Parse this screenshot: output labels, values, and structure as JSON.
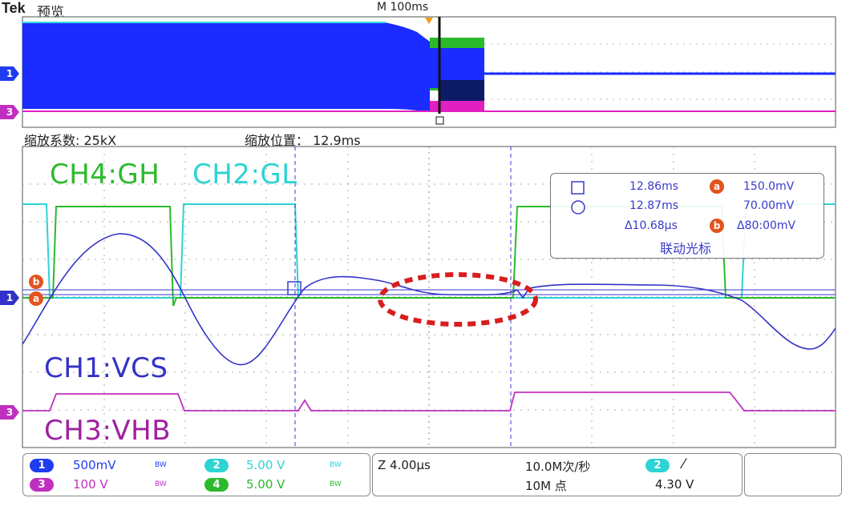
{
  "header": {
    "brand": "Tek",
    "mode": "预览",
    "overview_scale": "M 100ms"
  },
  "zoom": {
    "factor_label": "缩放系数: 25kX",
    "position_label": "缩放位置： 12.9ms"
  },
  "channel_labels": {
    "ch4": "CH4:GH",
    "ch2": "CH2:GL",
    "ch1": "CH1:VCS",
    "ch3": "CH3:VHB"
  },
  "cursor_readout": {
    "square_time": "12.86ms",
    "circle_time": "12.87ms",
    "delta_time": "Δ10.68µs",
    "a_value": "150.0mV",
    "b_value": "70.00mV",
    "delta_value": "Δ80:00mV",
    "mode": "联动光标",
    "a_badge": "a",
    "b_badge": "b"
  },
  "left_markers": {
    "ch1": "1",
    "ch3": "3",
    "a": "a",
    "b": "b"
  },
  "overview_markers": {
    "ch1": "1",
    "ch3": "3"
  },
  "status_bar": {
    "ch1": {
      "num": "1",
      "scale": "500mV",
      "bw": "BW"
    },
    "ch2": {
      "num": "2",
      "scale": "5.00 V",
      "bw": "BW"
    },
    "ch3": {
      "num": "3",
      "scale": "100 V",
      "bw": "BW"
    },
    "ch4": {
      "num": "4",
      "scale": "5.00 V",
      "bw": "BW"
    },
    "timebase": "Z 4.00µs",
    "sample_rate": "10.0M次/秒",
    "record_length": "10M 点",
    "trigger_channel": "2",
    "trigger_slope": "⁄",
    "trigger_level": "4.30 V"
  },
  "colors": {
    "ch1": "#3232c8",
    "ch2": "#2ed3d3",
    "ch3": "#c030c0",
    "ch4": "#2cba2c",
    "overview_blue": "#1a2cff",
    "highlight": "#d81e1e",
    "cursor": "#3a3acb"
  }
}
